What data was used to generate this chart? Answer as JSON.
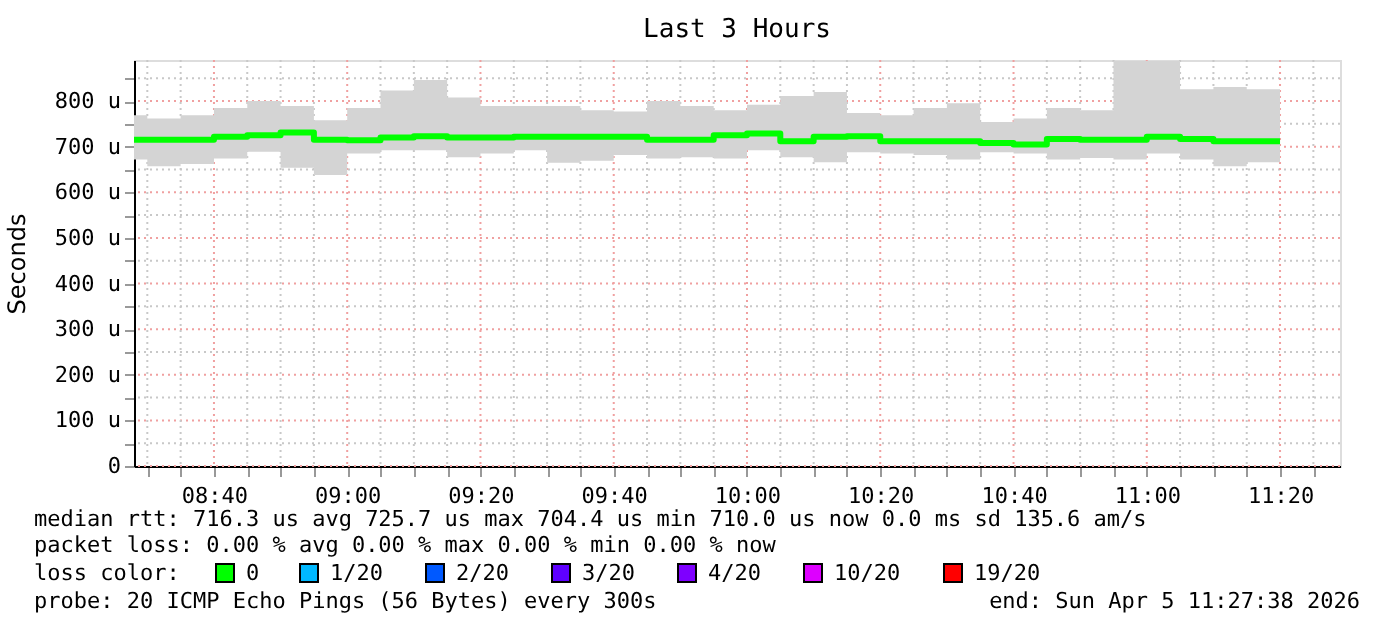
{
  "chart_data": {
    "type": "step",
    "title": "Last 3 Hours",
    "ylabel": "Seconds",
    "x": [
      8.4667,
      8.5,
      8.5833,
      8.6667,
      8.75,
      8.8333,
      8.9167,
      9.0,
      9.0833,
      9.1667,
      9.25,
      9.3333,
      9.4167,
      9.5,
      9.5833,
      9.6667,
      9.75,
      9.8333,
      9.9167,
      10.0,
      10.0833,
      10.1667,
      10.25,
      10.3333,
      10.4167,
      10.5,
      10.5833,
      10.6667,
      10.75,
      10.8333,
      10.9167,
      11.0,
      11.0833,
      11.1667,
      11.25,
      11.3333
    ],
    "series": [
      {
        "name": "0",
        "color": "#00ff00",
        "values": [
          715,
          715,
          715,
          722,
          725,
          731,
          715,
          714,
          720,
          723,
          720,
          720,
          722,
          722,
          722,
          722,
          715,
          715,
          725,
          729,
          712,
          722,
          723,
          712,
          712,
          712,
          708,
          705,
          717,
          715,
          715,
          722,
          717,
          712,
          712,
          712
        ],
        "lower": [
          672,
          657,
          662,
          674,
          689,
          654,
          638,
          685,
          692,
          692,
          677,
          685,
          692,
          665,
          669,
          682,
          674,
          677,
          674,
          692,
          677,
          666,
          688,
          685,
          682,
          672,
          688,
          685,
          672,
          675,
          672,
          685,
          672,
          657,
          666,
          666
        ],
        "upper": [
          769,
          762,
          769,
          785,
          800,
          789,
          758,
          785,
          823,
          846,
          808,
          789,
          789,
          789,
          780,
          777,
          800,
          789,
          780,
          792,
          811,
          820,
          774,
          769,
          785,
          795,
          754,
          762,
          785,
          780,
          888,
          888,
          826,
          831,
          826,
          826
        ]
      },
      {
        "name": "1/20",
        "color": "#00b8ff",
        "values": [
          null,
          null,
          null,
          null,
          null,
          null,
          null,
          null,
          null,
          null,
          null,
          null,
          null,
          null,
          null,
          null,
          null,
          null,
          null,
          null,
          null,
          null,
          null,
          null,
          null,
          null,
          null,
          null,
          null,
          null,
          null,
          null,
          null,
          null,
          null,
          null
        ]
      },
      {
        "name": "2/20",
        "color": "#0059ff",
        "values": [
          null,
          null,
          null,
          null,
          null,
          null,
          null,
          null,
          null,
          null,
          null,
          null,
          null,
          null,
          null,
          null,
          null,
          null,
          null,
          null,
          null,
          null,
          null,
          null,
          null,
          null,
          null,
          null,
          null,
          null,
          null,
          null,
          null,
          null,
          null,
          null
        ]
      },
      {
        "name": "3/20",
        "color": "#5e00ff",
        "values": [
          null,
          null,
          null,
          null,
          null,
          null,
          null,
          null,
          null,
          null,
          null,
          null,
          null,
          null,
          null,
          null,
          null,
          null,
          null,
          null,
          null,
          null,
          null,
          null,
          null,
          null,
          null,
          null,
          null,
          null,
          null,
          null,
          null,
          null,
          null,
          null
        ]
      },
      {
        "name": "4/20",
        "color": "#7e00ff",
        "values": [
          null,
          null,
          null,
          null,
          null,
          null,
          null,
          null,
          null,
          null,
          null,
          null,
          null,
          null,
          null,
          null,
          null,
          null,
          null,
          null,
          null,
          null,
          null,
          null,
          null,
          null,
          null,
          null,
          null,
          null,
          null,
          null,
          null,
          null,
          null,
          null
        ]
      },
      {
        "name": "10/20",
        "color": "#dd00ff",
        "values": [
          null,
          null,
          null,
          null,
          null,
          null,
          null,
          null,
          null,
          null,
          null,
          null,
          null,
          null,
          null,
          null,
          null,
          null,
          null,
          null,
          null,
          null,
          null,
          null,
          null,
          null,
          null,
          null,
          null,
          null,
          null,
          null,
          null,
          null,
          null,
          null
        ]
      },
      {
        "name": "19/20",
        "color": "#ff0000",
        "values": [
          null,
          null,
          null,
          null,
          null,
          null,
          null,
          null,
          null,
          null,
          null,
          null,
          null,
          null,
          null,
          null,
          null,
          null,
          null,
          null,
          null,
          null,
          null,
          null,
          null,
          null,
          null,
          null,
          null,
          null,
          null,
          null,
          null,
          null,
          null,
          null
        ]
      }
    ],
    "legend_title": "loss color:",
    "legend": "bottom",
    "grid": true,
    "xlim": [
      8.4667,
      11.4833
    ],
    "xticks": [
      {
        "value": 8.5,
        "label": null
      },
      {
        "value": 8.5833,
        "label": null
      },
      {
        "value": 8.6667,
        "label": "08:40"
      },
      {
        "value": 8.75,
        "label": null
      },
      {
        "value": 8.8333,
        "label": null
      },
      {
        "value": 8.9167,
        "label": null
      },
      {
        "value": 9.0,
        "label": "09:00"
      },
      {
        "value": 9.0833,
        "label": null
      },
      {
        "value": 9.1667,
        "label": null
      },
      {
        "value": 9.25,
        "label": null
      },
      {
        "value": 9.3333,
        "label": "09:20"
      },
      {
        "value": 9.4167,
        "label": null
      },
      {
        "value": 9.5,
        "label": null
      },
      {
        "value": 9.5833,
        "label": null
      },
      {
        "value": 9.6667,
        "label": "09:40"
      },
      {
        "value": 9.75,
        "label": null
      },
      {
        "value": 9.8333,
        "label": null
      },
      {
        "value": 9.9167,
        "label": null
      },
      {
        "value": 10.0,
        "label": "10:00"
      },
      {
        "value": 10.0833,
        "label": null
      },
      {
        "value": 10.1667,
        "label": null
      },
      {
        "value": 10.25,
        "label": null
      },
      {
        "value": 10.3333,
        "label": "10:20"
      },
      {
        "value": 10.4167,
        "label": null
      },
      {
        "value": 10.5,
        "label": null
      },
      {
        "value": 10.5833,
        "label": null
      },
      {
        "value": 10.6667,
        "label": "10:40"
      },
      {
        "value": 10.75,
        "label": null
      },
      {
        "value": 10.8333,
        "label": null
      },
      {
        "value": 10.9167,
        "label": null
      },
      {
        "value": 11.0,
        "label": "11:00"
      },
      {
        "value": 11.0833,
        "label": null
      },
      {
        "value": 11.1667,
        "label": null
      },
      {
        "value": 11.25,
        "label": null
      },
      {
        "value": 11.3333,
        "label": "11:20"
      },
      {
        "value": 11.4167,
        "label": null
      }
    ],
    "ylim": [
      0,
      890
    ],
    "yticks": [
      0,
      {
        "value": 50,
        "label": null
      },
      {
        "value": 100,
        "label": "100 u"
      },
      {
        "value": 150,
        "label": null
      },
      {
        "value": 200,
        "label": "200 u"
      },
      {
        "value": 250,
        "label": null
      },
      {
        "value": 300,
        "label": "300 u"
      },
      {
        "value": 350,
        "label": null
      },
      {
        "value": 400,
        "label": "400 u"
      },
      {
        "value": 450,
        "label": null
      },
      {
        "value": 500,
        "label": "500 u"
      },
      {
        "value": 550,
        "label": null
      },
      {
        "value": 600,
        "label": "600 u"
      },
      {
        "value": 650,
        "label": null
      },
      {
        "value": 700,
        "label": "700 u"
      },
      {
        "value": 750,
        "label": null
      },
      {
        "value": 800,
        "label": "800 u"
      },
      {
        "value": 850,
        "label": null
      }
    ],
    "annotations": [
      "median rtt:  716.3 us avg  725.7 us max  704.4 us min  710.0 us now  0.0 ms sd  135.6   am/s",
      "packet loss: 0.00 % avg  0.00 % max  0.00 % min  0.00 % now",
      "probe:       20 ICMP Echo Pings (56 Bytes) every 300s",
      "end: Sun Apr  5 11:27:38 2026"
    ]
  }
}
